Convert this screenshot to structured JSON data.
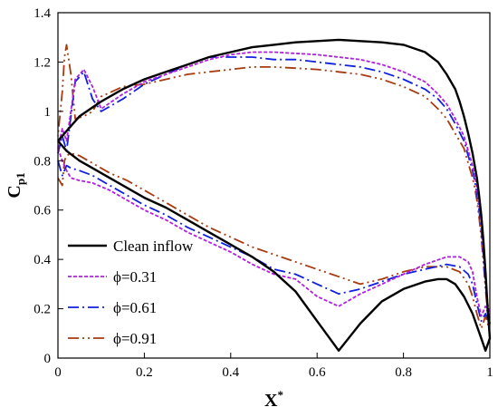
{
  "chart_data": {
    "type": "line",
    "xlabel": "X",
    "xlabel_sup": "*",
    "ylabel": "C",
    "ylabel_sub": "p1",
    "xlim": [
      0,
      1
    ],
    "ylim": [
      0,
      1.4
    ],
    "xticks": [
      0,
      0.2,
      0.4,
      0.6,
      0.8,
      1
    ],
    "xtick_labels": [
      "0",
      "0.2",
      "0.4",
      "0.6",
      "0.8",
      "1"
    ],
    "yticks": [
      0,
      0.2,
      0.4,
      0.6,
      0.8,
      1,
      1.2,
      1.4
    ],
    "ytick_labels": [
      "0",
      "0.2",
      "0.4",
      "0.6",
      "0.8",
      "1",
      "1.2",
      "1.4"
    ],
    "grid": false,
    "legend_position": "bottom-left",
    "series": [
      {
        "name": "Clean inflow",
        "color": "#000000",
        "style": "solid",
        "x": [
          0,
          0.02,
          0.05,
          0.08,
          0.12,
          0.16,
          0.2,
          0.25,
          0.3,
          0.35,
          0.4,
          0.45,
          0.5,
          0.55,
          0.6,
          0.65,
          0.7,
          0.75,
          0.8,
          0.85,
          0.88,
          0.9,
          0.92,
          0.94,
          0.96,
          0.97,
          0.98,
          0.99,
          1,
          0.995,
          0.99,
          0.985,
          0.98,
          0.975,
          0.97,
          0.96,
          0.95,
          0.94,
          0.93,
          0.92,
          0.9,
          0.88,
          0.85,
          0.8,
          0.75,
          0.7,
          0.65,
          0.6,
          0.55,
          0.5,
          0.45,
          0.4,
          0.35,
          0.3,
          0.25,
          0.2,
          0.15,
          0.1,
          0.05,
          0.02,
          0
        ],
        "y": [
          0.88,
          0.84,
          0.8,
          0.77,
          0.73,
          0.69,
          0.65,
          0.61,
          0.56,
          0.51,
          0.46,
          0.41,
          0.35,
          0.27,
          0.15,
          0.03,
          0.14,
          0.23,
          0.28,
          0.31,
          0.32,
          0.32,
          0.3,
          0.25,
          0.18,
          0.13,
          0.08,
          0.03,
          0.08,
          0.2,
          0.35,
          0.48,
          0.58,
          0.66,
          0.73,
          0.83,
          0.91,
          0.98,
          1.04,
          1.09,
          1.15,
          1.2,
          1.24,
          1.27,
          1.28,
          1.285,
          1.29,
          1.285,
          1.28,
          1.27,
          1.26,
          1.24,
          1.22,
          1.19,
          1.16,
          1.13,
          1.09,
          1.04,
          0.98,
          0.92,
          0.88
        ]
      },
      {
        "name": "ϕ=0.31",
        "color": "#b020e0",
        "style": "dashed",
        "x": [
          0,
          0.01,
          0.02,
          0.03,
          0.05,
          0.08,
          0.12,
          0.16,
          0.2,
          0.25,
          0.3,
          0.35,
          0.4,
          0.45,
          0.5,
          0.55,
          0.6,
          0.65,
          0.7,
          0.75,
          0.8,
          0.85,
          0.9,
          0.93,
          0.95,
          0.96,
          0.97,
          0.98,
          0.99,
          1,
          0.995,
          0.99,
          0.985,
          0.98,
          0.975,
          0.97,
          0.965,
          0.96,
          0.95,
          0.94,
          0.92,
          0.9,
          0.88,
          0.85,
          0.8,
          0.75,
          0.7,
          0.65,
          0.6,
          0.55,
          0.5,
          0.45,
          0.4,
          0.35,
          0.3,
          0.25,
          0.2,
          0.15,
          0.1,
          0.08,
          0.06,
          0.04,
          0.03,
          0.02,
          0.01,
          0
        ],
        "y": [
          0.85,
          0.8,
          0.76,
          0.73,
          0.72,
          0.71,
          0.68,
          0.64,
          0.6,
          0.56,
          0.51,
          0.47,
          0.43,
          0.38,
          0.34,
          0.32,
          0.25,
          0.21,
          0.26,
          0.3,
          0.34,
          0.38,
          0.41,
          0.41,
          0.39,
          0.35,
          0.25,
          0.17,
          0.21,
          0.16,
          0.22,
          0.33,
          0.45,
          0.55,
          0.62,
          0.69,
          0.74,
          0.78,
          0.84,
          0.9,
          0.97,
          1.03,
          1.07,
          1.12,
          1.16,
          1.19,
          1.21,
          1.22,
          1.23,
          1.235,
          1.24,
          1.24,
          1.23,
          1.21,
          1.18,
          1.15,
          1.12,
          1.07,
          1.01,
          1.1,
          1.17,
          1.13,
          1.0,
          0.88,
          0.93,
          0.85
        ]
      },
      {
        "name": "ϕ=0.61",
        "color": "#1020e0",
        "style": "dashdot",
        "x": [
          0,
          0.01,
          0.02,
          0.03,
          0.05,
          0.08,
          0.12,
          0.16,
          0.2,
          0.25,
          0.3,
          0.35,
          0.4,
          0.45,
          0.5,
          0.55,
          0.6,
          0.65,
          0.7,
          0.75,
          0.8,
          0.85,
          0.9,
          0.93,
          0.95,
          0.96,
          0.97,
          0.98,
          0.99,
          1,
          0.995,
          0.99,
          0.985,
          0.98,
          0.975,
          0.97,
          0.965,
          0.96,
          0.95,
          0.94,
          0.92,
          0.9,
          0.88,
          0.85,
          0.8,
          0.75,
          0.7,
          0.65,
          0.6,
          0.55,
          0.5,
          0.45,
          0.4,
          0.35,
          0.3,
          0.25,
          0.2,
          0.15,
          0.1,
          0.08,
          0.06,
          0.04,
          0.03,
          0.02,
          0.01,
          0
        ],
        "y": [
          0.8,
          0.74,
          0.78,
          0.77,
          0.76,
          0.74,
          0.7,
          0.66,
          0.62,
          0.58,
          0.53,
          0.49,
          0.45,
          0.41,
          0.36,
          0.34,
          0.3,
          0.26,
          0.28,
          0.31,
          0.34,
          0.36,
          0.38,
          0.37,
          0.34,
          0.3,
          0.22,
          0.15,
          0.18,
          0.14,
          0.2,
          0.3,
          0.42,
          0.52,
          0.6,
          0.67,
          0.72,
          0.76,
          0.82,
          0.88,
          0.95,
          1.01,
          1.05,
          1.09,
          1.13,
          1.16,
          1.18,
          1.19,
          1.2,
          1.21,
          1.21,
          1.22,
          1.22,
          1.22,
          1.19,
          1.15,
          1.11,
          1.05,
          1.0,
          1.05,
          1.16,
          1.12,
          0.98,
          0.84,
          0.9,
          0.83
        ]
      },
      {
        "name": "ϕ=0.91",
        "color": "#a83a10",
        "style": "dashdotdot",
        "x": [
          0,
          0.01,
          0.015,
          0.02,
          0.03,
          0.05,
          0.08,
          0.12,
          0.16,
          0.2,
          0.25,
          0.3,
          0.35,
          0.4,
          0.45,
          0.5,
          0.55,
          0.6,
          0.65,
          0.7,
          0.75,
          0.8,
          0.85,
          0.9,
          0.93,
          0.95,
          0.96,
          0.97,
          0.98,
          0.99,
          1,
          0.995,
          0.99,
          0.985,
          0.98,
          0.975,
          0.97,
          0.965,
          0.96,
          0.95,
          0.94,
          0.92,
          0.9,
          0.88,
          0.85,
          0.8,
          0.75,
          0.7,
          0.65,
          0.6,
          0.55,
          0.5,
          0.45,
          0.4,
          0.35,
          0.3,
          0.25,
          0.2,
          0.15,
          0.1,
          0.08,
          0.06,
          0.04,
          0.03,
          0.02,
          0.015,
          0.01,
          0
        ],
        "y": [
          0.73,
          0.7,
          0.8,
          0.82,
          0.83,
          0.82,
          0.79,
          0.75,
          0.72,
          0.68,
          0.63,
          0.58,
          0.53,
          0.49,
          0.45,
          0.42,
          0.39,
          0.36,
          0.33,
          0.3,
          0.32,
          0.35,
          0.37,
          0.37,
          0.35,
          0.3,
          0.25,
          0.18,
          0.12,
          0.17,
          0.11,
          0.18,
          0.28,
          0.39,
          0.49,
          0.57,
          0.64,
          0.69,
          0.73,
          0.79,
          0.85,
          0.91,
          0.97,
          1.01,
          1.06,
          1.1,
          1.13,
          1.15,
          1.16,
          1.17,
          1.175,
          1.18,
          1.18,
          1.17,
          1.16,
          1.15,
          1.13,
          1.11,
          1.1,
          1.06,
          1.0,
          0.98,
          0.97,
          1.15,
          1.27,
          1.22,
          1.08,
          0.9
        ]
      }
    ]
  }
}
